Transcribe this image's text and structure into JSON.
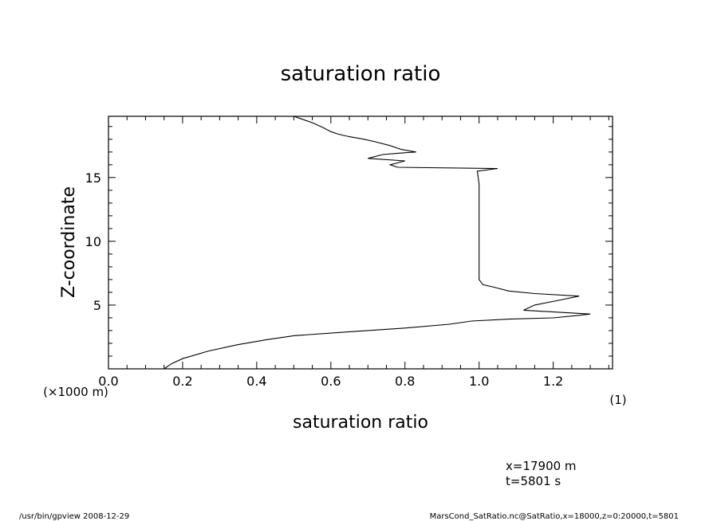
{
  "chart_data": {
    "type": "line",
    "title": "saturation ratio",
    "xlabel": "saturation ratio",
    "ylabel": "Z-coordinate",
    "x_unit_label": "(1)",
    "y_unit_label": "(×1000 m)",
    "xlim": [
      0,
      1.36
    ],
    "ylim": [
      0,
      19.8
    ],
    "x_ticks": [
      0.0,
      0.2,
      0.4,
      0.6,
      0.8,
      1.0,
      1.2
    ],
    "x_tick_labels": [
      "0.0",
      "0.2",
      "0.4",
      "0.6",
      "0.8",
      "1.0",
      "1.2"
    ],
    "y_ticks": [
      5,
      10,
      15
    ],
    "y_tick_labels": [
      "5",
      "10",
      "15"
    ],
    "grid": false,
    "series": [
      {
        "points": [
          [
            0.15,
            0.0
          ],
          [
            0.17,
            0.4
          ],
          [
            0.2,
            0.8
          ],
          [
            0.27,
            1.4
          ],
          [
            0.35,
            1.9
          ],
          [
            0.43,
            2.3
          ],
          [
            0.5,
            2.6
          ],
          [
            0.62,
            2.85
          ],
          [
            0.8,
            3.2
          ],
          [
            0.92,
            3.5
          ],
          [
            0.98,
            3.75
          ],
          [
            1.08,
            3.9
          ],
          [
            1.2,
            4.0
          ],
          [
            1.27,
            4.2
          ],
          [
            1.3,
            4.3
          ],
          [
            1.12,
            4.6
          ],
          [
            1.15,
            5.0
          ],
          [
            1.22,
            5.4
          ],
          [
            1.27,
            5.7
          ],
          [
            1.15,
            5.9
          ],
          [
            1.08,
            6.1
          ],
          [
            1.04,
            6.4
          ],
          [
            1.01,
            6.6
          ],
          [
            1.0,
            7.0
          ],
          [
            1.0,
            9.0
          ],
          [
            1.0,
            11.0
          ],
          [
            1.0,
            13.0
          ],
          [
            1.0,
            14.5
          ],
          [
            0.995,
            15.5
          ],
          [
            1.05,
            15.7
          ],
          [
            0.78,
            15.8
          ],
          [
            0.76,
            16.0
          ],
          [
            0.8,
            16.3
          ],
          [
            0.7,
            16.5
          ],
          [
            0.74,
            16.8
          ],
          [
            0.78,
            16.9
          ],
          [
            0.83,
            17.0
          ],
          [
            0.79,
            17.2
          ],
          [
            0.76,
            17.5
          ],
          [
            0.72,
            17.8
          ],
          [
            0.69,
            18.0
          ],
          [
            0.65,
            18.2
          ],
          [
            0.62,
            18.4
          ],
          [
            0.6,
            18.6
          ],
          [
            0.58,
            18.9
          ],
          [
            0.55,
            19.3
          ],
          [
            0.52,
            19.6
          ],
          [
            0.5,
            19.8
          ]
        ]
      }
    ]
  },
  "annotations": {
    "position_line1": "x=17900  m",
    "position_line2": "t=5801  s"
  },
  "footer": {
    "left": "/usr/bin/gpview   2008-12-29",
    "right": "MarsCond_SatRatio.nc@SatRatio,x=18000,z=0:20000,t=5801"
  }
}
